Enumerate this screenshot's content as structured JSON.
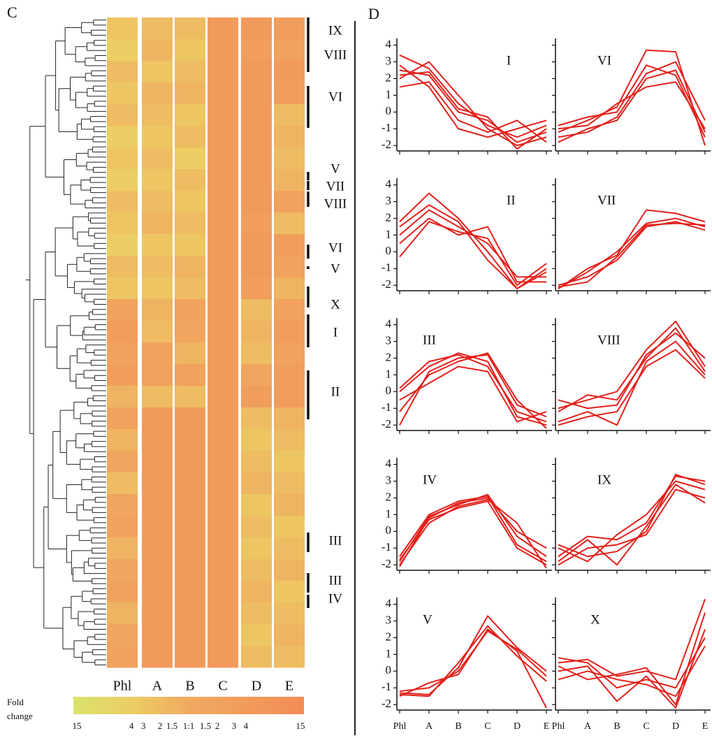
{
  "panel_labels": [
    "C",
    "D"
  ],
  "chart_data": [
    {
      "type": "heatmap",
      "columns": [
        "Phl",
        "A",
        "B",
        "C",
        "D",
        "E"
      ],
      "values": [
        [
          -3,
          -2,
          -2,
          4,
          4,
          3
        ],
        [
          -4,
          -1.5,
          -3,
          4,
          3,
          2
        ],
        [
          -2,
          -3,
          -2,
          4,
          4,
          4
        ],
        [
          -3,
          -1.5,
          -1.5,
          4,
          4,
          3
        ],
        [
          -2,
          -2,
          -3,
          4,
          4,
          -2
        ],
        [
          -4,
          -3,
          -2,
          4,
          4,
          -1.5
        ],
        [
          -3,
          -2,
          -4,
          4,
          4,
          -2
        ],
        [
          -4,
          -3,
          -2,
          4,
          4,
          -1.5
        ],
        [
          -2,
          -2,
          -3,
          4,
          4,
          2
        ],
        [
          -3,
          -1.5,
          -2,
          4,
          3,
          -2
        ],
        [
          -4,
          -3,
          -3,
          4,
          4,
          3
        ],
        [
          -2,
          -2,
          -1.5,
          4,
          4,
          2
        ],
        [
          -3,
          -3,
          -2,
          4,
          3,
          -1.5
        ],
        [
          2,
          -1.5,
          2,
          4,
          -2,
          2
        ],
        [
          3,
          -2,
          1.5,
          4,
          -1.5,
          3
        ],
        [
          2,
          2,
          -1.5,
          4,
          -2,
          2
        ],
        [
          3,
          2,
          2,
          4,
          1.5,
          3
        ],
        [
          -1.5,
          -2,
          -2,
          4,
          3,
          3
        ],
        [
          2,
          4,
          4,
          4,
          -2,
          -1.5
        ],
        [
          -1.5,
          4,
          4,
          4,
          -3,
          -2
        ],
        [
          1.5,
          4,
          4,
          4,
          -2,
          -3
        ],
        [
          -2,
          4,
          4,
          4,
          -1.5,
          -2
        ],
        [
          1.5,
          4,
          4,
          4,
          -3,
          -1.5
        ],
        [
          2,
          4,
          4,
          4,
          -2,
          -3
        ],
        [
          -1.5,
          4,
          4,
          4,
          -3,
          -2
        ],
        [
          1.5,
          4,
          4,
          4,
          -2,
          -1.5
        ],
        [
          2,
          4,
          4,
          4,
          -1.5,
          -3
        ],
        [
          -1.5,
          4,
          4,
          4,
          -2,
          -2
        ],
        [
          1.5,
          4,
          4,
          4,
          -3,
          -1.5
        ],
        [
          2,
          4,
          4,
          4,
          -2,
          -2
        ]
      ],
      "annotations": [
        "IX",
        "VIII",
        "VI",
        "V",
        "VII",
        "VIII",
        "VI",
        "V",
        "X",
        "I",
        "II",
        "III",
        "III",
        "IV"
      ],
      "colorbar": {
        "label": "Fold change",
        "clim": [
          -15,
          15
        ],
        "ticks": [
          {
            "value": -15,
            "label": "15"
          },
          {
            "value": -4,
            "label": "4"
          },
          {
            "value": -3,
            "label": "3"
          },
          {
            "value": -2,
            "label": "2"
          },
          {
            "value": -1.5,
            "label": "1.5"
          },
          {
            "value": 1,
            "label": "1:1"
          },
          {
            "value": 1.5,
            "label": "1.5"
          },
          {
            "value": 2,
            "label": "2"
          },
          {
            "value": 3,
            "label": "3"
          },
          {
            "value": 4,
            "label": "4"
          },
          {
            "value": 15,
            "label": "15"
          }
        ]
      }
    },
    {
      "type": "line",
      "title": "I",
      "color": "#e3201b",
      "ylim": [
        -2.2,
        4.4
      ],
      "yticks": [
        -2,
        -1,
        0,
        1,
        2,
        3,
        4
      ],
      "series": [
        {
          "values": [
            3.4,
            2.6,
            0.5,
            -0.8,
            -1.5,
            -0.8
          ]
        },
        {
          "values": [
            2.5,
            2.2,
            0.0,
            -0.5,
            -1.8,
            -1.2
          ]
        },
        {
          "values": [
            2.0,
            3.0,
            1.0,
            -1.0,
            -2.0,
            -1.5
          ]
        },
        {
          "values": [
            1.5,
            1.8,
            -0.5,
            -1.2,
            -0.5,
            -1.8
          ]
        },
        {
          "values": [
            2.8,
            1.5,
            -1.0,
            -1.5,
            -1.0,
            -0.5
          ]
        },
        {
          "values": [
            2.2,
            2.4,
            0.2,
            -0.3,
            -2.2,
            -1.0
          ]
        }
      ]
    },
    {
      "type": "line",
      "title": "II",
      "color": "#e3201b",
      "ylim": [
        -2.2,
        4.4
      ],
      "yticks": [
        -2,
        -1,
        0,
        1,
        2,
        3,
        4
      ],
      "series": [
        {
          "values": [
            1.0,
            2.5,
            1.5,
            0.5,
            -1.5,
            -1.5
          ]
        },
        {
          "values": [
            -0.3,
            1.8,
            1.2,
            0.8,
            -2.0,
            -0.7
          ]
        },
        {
          "values": [
            1.8,
            3.5,
            2.0,
            0.0,
            -2.2,
            -1.2
          ]
        },
        {
          "values": [
            0.5,
            2.0,
            1.0,
            1.5,
            -1.8,
            -1.8
          ]
        },
        {
          "values": [
            1.5,
            2.8,
            1.8,
            -0.5,
            -2.2,
            -1.0
          ]
        }
      ]
    },
    {
      "type": "line",
      "title": "III",
      "color": "#e3201b",
      "ylim": [
        -2.2,
        4.4
      ],
      "yticks": [
        -2,
        -1,
        0,
        1,
        2,
        3,
        4
      ],
      "series": [
        {
          "values": [
            -2.0,
            1.2,
            2.0,
            2.2,
            -0.8,
            -1.5
          ]
        },
        {
          "values": [
            0.0,
            1.5,
            2.3,
            1.8,
            -1.5,
            -2.0
          ]
        },
        {
          "values": [
            -0.5,
            0.5,
            1.5,
            1.2,
            -1.8,
            -1.2
          ]
        },
        {
          "values": [
            -1.2,
            1.0,
            1.8,
            2.3,
            -0.5,
            -2.2
          ]
        },
        {
          "values": [
            0.2,
            1.8,
            2.2,
            1.5,
            -1.2,
            -1.8
          ]
        }
      ]
    },
    {
      "type": "line",
      "title": "IV",
      "color": "#e3201b",
      "ylim": [
        -2.2,
        4.4
      ],
      "yticks": [
        -2,
        -1,
        0,
        1,
        2,
        3,
        4
      ],
      "series": [
        {
          "values": [
            -2.1,
            0.8,
            1.7,
            2.0,
            0.0,
            -1.0
          ]
        },
        {
          "values": [
            -1.5,
            1.0,
            1.8,
            2.1,
            -0.8,
            -1.8
          ]
        },
        {
          "values": [
            -2.0,
            0.5,
            1.5,
            1.9,
            0.5,
            -2.2
          ]
        },
        {
          "values": [
            -1.8,
            0.9,
            1.6,
            2.2,
            -0.3,
            -1.5
          ]
        },
        {
          "values": [
            -1.7,
            0.7,
            1.4,
            1.8,
            -1.0,
            -2.0
          ]
        }
      ]
    },
    {
      "type": "line",
      "title": "V",
      "color": "#e3201b",
      "ylim": [
        -2.2,
        4.4
      ],
      "yticks": [
        -2,
        -1,
        0,
        1,
        2,
        3,
        4
      ],
      "categories": [
        "Phl",
        "A",
        "B",
        "C",
        "D",
        "E"
      ],
      "series": [
        {
          "values": [
            -1.3,
            -1.4,
            0.2,
            3.3,
            1.4,
            0.0
          ]
        },
        {
          "values": [
            -1.5,
            -0.7,
            -0.2,
            2.5,
            1.2,
            -2.2
          ]
        },
        {
          "values": [
            -1.4,
            -1.5,
            0.5,
            2.7,
            0.9,
            -0.6
          ]
        },
        {
          "values": [
            -1.2,
            -1.0,
            0.0,
            2.4,
            1.3,
            -0.3
          ]
        }
      ]
    },
    {
      "type": "line",
      "title": "VI",
      "color": "#e3201b",
      "ylim": [
        -2.2,
        4.4
      ],
      "yticks": [
        -2,
        -1,
        0,
        1,
        2,
        3,
        4
      ],
      "series": [
        {
          "values": [
            -1.2,
            -0.5,
            0.3,
            3.7,
            3.6,
            -2.0
          ]
        },
        {
          "values": [
            -1.8,
            -1.0,
            -0.5,
            2.0,
            2.5,
            -1.2
          ]
        },
        {
          "values": [
            -0.8,
            -0.3,
            0.0,
            2.8,
            2.2,
            -1.5
          ]
        },
        {
          "values": [
            -1.5,
            -1.2,
            -0.3,
            2.3,
            3.0,
            -0.5
          ]
        },
        {
          "values": [
            -1.0,
            -0.8,
            0.5,
            1.5,
            1.8,
            -1.0
          ]
        }
      ]
    },
    {
      "type": "line",
      "title": "VII",
      "color": "#e3201b",
      "ylim": [
        -2.2,
        4.4
      ],
      "yticks": [
        -2,
        -1,
        0,
        1,
        2,
        3,
        4
      ],
      "series": [
        {
          "values": [
            -2.2,
            -1.0,
            -0.2,
            2.5,
            2.3,
            1.8
          ]
        },
        {
          "values": [
            -2.0,
            -1.5,
            -0.5,
            1.5,
            1.8,
            1.3
          ]
        },
        {
          "values": [
            -2.2,
            -1.2,
            0.0,
            1.7,
            2.0,
            1.5
          ]
        },
        {
          "values": [
            -2.1,
            -1.8,
            -0.3,
            1.6,
            1.7,
            1.6
          ]
        }
      ]
    },
    {
      "type": "line",
      "title": "VIII",
      "color": "#e3201b",
      "ylim": [
        -2.2,
        4.4
      ],
      "yticks": [
        -2,
        -1,
        0,
        1,
        2,
        3,
        4
      ],
      "series": [
        {
          "values": [
            -1.0,
            -0.5,
            0.0,
            2.5,
            4.2,
            1.5
          ]
        },
        {
          "values": [
            -1.8,
            -1.2,
            -2.0,
            1.8,
            3.0,
            1.0
          ]
        },
        {
          "values": [
            -0.5,
            -1.0,
            -0.8,
            2.2,
            3.5,
            2.0
          ]
        },
        {
          "values": [
            -2.0,
            -1.5,
            -1.2,
            1.5,
            2.5,
            0.8
          ]
        },
        {
          "values": [
            -1.2,
            -0.2,
            -0.5,
            2.0,
            3.8,
            1.2
          ]
        }
      ]
    },
    {
      "type": "line",
      "title": "IX",
      "color": "#e3201b",
      "ylim": [
        -2.2,
        4.4
      ],
      "yticks": [
        -2,
        -1,
        0,
        1,
        2,
        3,
        4
      ],
      "series": [
        {
          "values": [
            -1.5,
            -0.3,
            -0.5,
            0.5,
            3.3,
            3.0
          ]
        },
        {
          "values": [
            -2.0,
            -1.0,
            -0.8,
            -0.2,
            2.5,
            2.0
          ]
        },
        {
          "values": [
            -1.0,
            -1.8,
            -0.2,
            1.0,
            3.0,
            2.5
          ]
        },
        {
          "values": [
            -1.8,
            -0.5,
            -2.0,
            0.3,
            2.8,
            1.7
          ]
        },
        {
          "values": [
            -0.8,
            -1.5,
            -1.2,
            0.0,
            3.4,
            2.8
          ]
        }
      ]
    },
    {
      "type": "line",
      "title": "X",
      "color": "#e3201b",
      "ylim": [
        -2.2,
        4.4
      ],
      "yticks": [
        -2,
        -1,
        0,
        1,
        2,
        3,
        4
      ],
      "categories": [
        "Phl",
        "A",
        "B",
        "C",
        "D",
        "E"
      ],
      "series": [
        {
          "values": [
            0.5,
            0.7,
            -0.3,
            0.0,
            -0.5,
            4.3
          ]
        },
        {
          "values": [
            0.0,
            0.3,
            -1.8,
            -0.3,
            -2.2,
            2.5
          ]
        },
        {
          "values": [
            -0.5,
            0.0,
            -0.5,
            -0.8,
            -1.5,
            1.5
          ]
        },
        {
          "values": [
            0.3,
            -0.5,
            -0.2,
            0.2,
            -2.0,
            3.5
          ]
        },
        {
          "values": [
            0.8,
            0.5,
            -1.0,
            -0.5,
            -1.0,
            2.0
          ]
        }
      ]
    }
  ]
}
